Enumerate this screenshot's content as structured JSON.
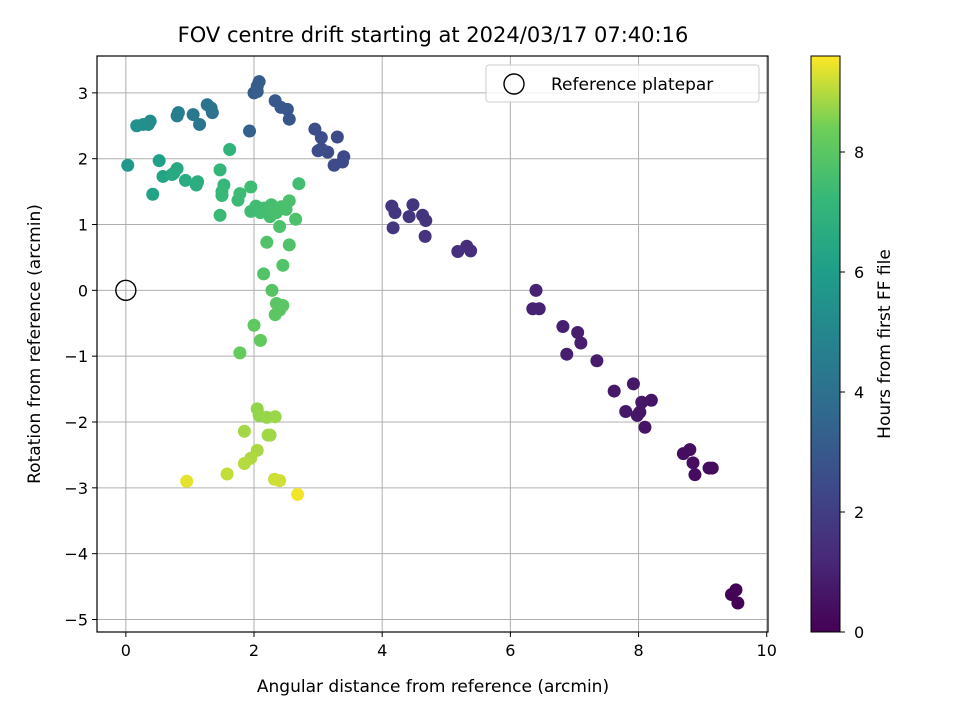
{
  "chart_data": {
    "type": "scatter",
    "title": "FOV centre drift starting at 2024/03/17 07:40:16",
    "xlabel": "Angular distance from reference (arcmin)",
    "ylabel": "Rotation from reference (arcmin)",
    "xlim": [
      -0.45,
      10.02
    ],
    "ylim": [
      -5.19,
      3.56
    ],
    "xticks": [
      0,
      2,
      4,
      6,
      8,
      10
    ],
    "yticks": [
      -5,
      -4,
      -3,
      -2,
      -1,
      0,
      1,
      2,
      3
    ],
    "grid": true,
    "legend": {
      "placement": "top-right",
      "label": "Reference platepar"
    },
    "reference_point": {
      "x": 0,
      "y": 0
    },
    "colorbar": {
      "label": "Hours from first FF file",
      "colormap": "viridis",
      "range": [
        0,
        9.6
      ],
      "ticks": [
        0,
        2,
        4,
        6,
        8
      ]
    },
    "points": [
      {
        "x": 9.52,
        "y": -4.55,
        "h": 0.05
      },
      {
        "x": 9.55,
        "y": -4.75,
        "h": 0.05
      },
      {
        "x": 9.45,
        "y": -4.62,
        "h": 0.08
      },
      {
        "x": 9.1,
        "y": -2.7,
        "h": 0.3
      },
      {
        "x": 9.15,
        "y": -2.7,
        "h": 0.3
      },
      {
        "x": 8.88,
        "y": -2.8,
        "h": 0.32
      },
      {
        "x": 8.85,
        "y": -2.62,
        "h": 0.35
      },
      {
        "x": 8.7,
        "y": -2.48,
        "h": 0.38
      },
      {
        "x": 8.8,
        "y": -2.42,
        "h": 0.4
      },
      {
        "x": 8.1,
        "y": -2.08,
        "h": 0.6
      },
      {
        "x": 8.2,
        "y": -1.67,
        "h": 0.62
      },
      {
        "x": 8.05,
        "y": -1.7,
        "h": 0.64
      },
      {
        "x": 8.02,
        "y": -1.85,
        "h": 0.66
      },
      {
        "x": 7.98,
        "y": -1.9,
        "h": 0.68
      },
      {
        "x": 7.8,
        "y": -1.84,
        "h": 0.7
      },
      {
        "x": 7.92,
        "y": -1.42,
        "h": 0.72
      },
      {
        "x": 7.62,
        "y": -1.53,
        "h": 0.74
      },
      {
        "x": 7.35,
        "y": -1.07,
        "h": 0.82
      },
      {
        "x": 7.1,
        "y": -0.8,
        "h": 0.86
      },
      {
        "x": 7.05,
        "y": -0.64,
        "h": 0.88
      },
      {
        "x": 6.88,
        "y": -0.97,
        "h": 0.9
      },
      {
        "x": 6.82,
        "y": -0.55,
        "h": 0.92
      },
      {
        "x": 6.45,
        "y": -0.28,
        "h": 1.0
      },
      {
        "x": 6.35,
        "y": -0.28,
        "h": 1.02
      },
      {
        "x": 6.4,
        "y": 0.0,
        "h": 1.05
      },
      {
        "x": 5.38,
        "y": 0.6,
        "h": 1.4
      },
      {
        "x": 5.32,
        "y": 0.67,
        "h": 1.42
      },
      {
        "x": 5.18,
        "y": 0.59,
        "h": 1.45
      },
      {
        "x": 4.67,
        "y": 0.82,
        "h": 1.6
      },
      {
        "x": 4.68,
        "y": 1.06,
        "h": 1.62
      },
      {
        "x": 4.63,
        "y": 1.14,
        "h": 1.64
      },
      {
        "x": 4.48,
        "y": 1.3,
        "h": 1.66
      },
      {
        "x": 4.42,
        "y": 1.12,
        "h": 1.68
      },
      {
        "x": 4.2,
        "y": 1.18,
        "h": 1.7
      },
      {
        "x": 4.15,
        "y": 1.28,
        "h": 1.72
      },
      {
        "x": 4.17,
        "y": 0.95,
        "h": 1.74
      },
      {
        "x": 3.4,
        "y": 2.03,
        "h": 2.4
      },
      {
        "x": 3.38,
        "y": 1.95,
        "h": 2.42
      },
      {
        "x": 3.25,
        "y": 1.9,
        "h": 2.44
      },
      {
        "x": 3.3,
        "y": 2.33,
        "h": 2.46
      },
      {
        "x": 3.15,
        "y": 2.1,
        "h": 2.5
      },
      {
        "x": 3.05,
        "y": 2.15,
        "h": 2.52
      },
      {
        "x": 3.0,
        "y": 2.12,
        "h": 2.54
      },
      {
        "x": 3.05,
        "y": 2.32,
        "h": 2.56
      },
      {
        "x": 2.95,
        "y": 2.45,
        "h": 2.6
      },
      {
        "x": 2.55,
        "y": 2.6,
        "h": 2.9
      },
      {
        "x": 2.52,
        "y": 2.75,
        "h": 2.92
      },
      {
        "x": 2.42,
        "y": 2.78,
        "h": 2.94
      },
      {
        "x": 2.33,
        "y": 2.88,
        "h": 2.96
      },
      {
        "x": 2.08,
        "y": 3.17,
        "h": 3.1
      },
      {
        "x": 2.05,
        "y": 3.1,
        "h": 3.12
      },
      {
        "x": 2.0,
        "y": 3.0,
        "h": 3.14
      },
      {
        "x": 2.05,
        "y": 3.02,
        "h": 3.16
      },
      {
        "x": 1.93,
        "y": 2.42,
        "h": 3.3
      },
      {
        "x": 1.33,
        "y": 2.77,
        "h": 4.0
      },
      {
        "x": 1.35,
        "y": 2.7,
        "h": 4.05
      },
      {
        "x": 1.27,
        "y": 2.82,
        "h": 4.1
      },
      {
        "x": 1.15,
        "y": 2.52,
        "h": 4.2
      },
      {
        "x": 1.05,
        "y": 2.67,
        "h": 4.3
      },
      {
        "x": 0.8,
        "y": 2.65,
        "h": 4.6
      },
      {
        "x": 0.82,
        "y": 2.7,
        "h": 4.65
      },
      {
        "x": 0.38,
        "y": 2.57,
        "h": 5.2
      },
      {
        "x": 0.35,
        "y": 2.52,
        "h": 5.25
      },
      {
        "x": 0.27,
        "y": 2.52,
        "h": 5.3
      },
      {
        "x": 0.17,
        "y": 2.5,
        "h": 5.4
      },
      {
        "x": 0.03,
        "y": 1.9,
        "h": 5.8
      },
      {
        "x": 0.52,
        "y": 1.97,
        "h": 6.0
      },
      {
        "x": 0.42,
        "y": 1.46,
        "h": 6.2
      },
      {
        "x": 0.58,
        "y": 1.73,
        "h": 6.3
      },
      {
        "x": 0.75,
        "y": 1.78,
        "h": 6.4
      },
      {
        "x": 0.8,
        "y": 1.85,
        "h": 6.5
      },
      {
        "x": 0.72,
        "y": 1.76,
        "h": 6.55
      },
      {
        "x": 0.93,
        "y": 1.67,
        "h": 6.6
      },
      {
        "x": 1.1,
        "y": 1.6,
        "h": 6.7
      },
      {
        "x": 1.12,
        "y": 1.65,
        "h": 6.72
      },
      {
        "x": 1.62,
        "y": 2.14,
        "h": 7.0
      },
      {
        "x": 1.47,
        "y": 1.83,
        "h": 7.1
      },
      {
        "x": 1.53,
        "y": 1.6,
        "h": 7.2
      },
      {
        "x": 1.5,
        "y": 1.5,
        "h": 7.22
      },
      {
        "x": 1.5,
        "y": 1.44,
        "h": 7.25
      },
      {
        "x": 1.47,
        "y": 1.14,
        "h": 7.3
      },
      {
        "x": 1.75,
        "y": 1.37,
        "h": 7.35
      },
      {
        "x": 1.78,
        "y": 1.47,
        "h": 7.38
      },
      {
        "x": 1.95,
        "y": 1.57,
        "h": 7.4
      },
      {
        "x": 1.95,
        "y": 1.2,
        "h": 7.42
      },
      {
        "x": 2.03,
        "y": 1.28,
        "h": 7.45
      },
      {
        "x": 2.1,
        "y": 1.18,
        "h": 7.47
      },
      {
        "x": 2.15,
        "y": 1.25,
        "h": 7.5
      },
      {
        "x": 2.2,
        "y": 1.22,
        "h": 7.52
      },
      {
        "x": 2.25,
        "y": 1.12,
        "h": 7.55
      },
      {
        "x": 2.27,
        "y": 1.3,
        "h": 7.57
      },
      {
        "x": 2.3,
        "y": 1.2,
        "h": 7.6
      },
      {
        "x": 2.35,
        "y": 1.18,
        "h": 7.62
      },
      {
        "x": 2.43,
        "y": 1.27,
        "h": 7.64
      },
      {
        "x": 2.5,
        "y": 1.23,
        "h": 7.66
      },
      {
        "x": 2.55,
        "y": 1.36,
        "h": 7.68
      },
      {
        "x": 2.4,
        "y": 0.97,
        "h": 7.7
      },
      {
        "x": 2.65,
        "y": 1.08,
        "h": 7.72
      },
      {
        "x": 2.7,
        "y": 1.62,
        "h": 7.5
      },
      {
        "x": 2.2,
        "y": 0.73,
        "h": 7.75
      },
      {
        "x": 2.55,
        "y": 0.69,
        "h": 7.78
      },
      {
        "x": 2.45,
        "y": 0.38,
        "h": 7.8
      },
      {
        "x": 2.15,
        "y": 0.25,
        "h": 7.85
      },
      {
        "x": 2.28,
        "y": 0.0,
        "h": 7.9
      },
      {
        "x": 2.35,
        "y": -0.2,
        "h": 7.95
      },
      {
        "x": 2.45,
        "y": -0.23,
        "h": 7.97
      },
      {
        "x": 2.4,
        "y": -0.3,
        "h": 8.0
      },
      {
        "x": 2.33,
        "y": -0.37,
        "h": 8.02
      },
      {
        "x": 2.0,
        "y": -0.53,
        "h": 8.1
      },
      {
        "x": 2.1,
        "y": -0.76,
        "h": 8.15
      },
      {
        "x": 1.78,
        "y": -0.95,
        "h": 8.2
      },
      {
        "x": 2.05,
        "y": -1.8,
        "h": 8.7
      },
      {
        "x": 2.08,
        "y": -1.9,
        "h": 8.72
      },
      {
        "x": 2.2,
        "y": -1.93,
        "h": 8.74
      },
      {
        "x": 2.33,
        "y": -1.92,
        "h": 8.76
      },
      {
        "x": 2.25,
        "y": -2.2,
        "h": 8.8
      },
      {
        "x": 2.22,
        "y": -2.2,
        "h": 8.82
      },
      {
        "x": 1.85,
        "y": -2.14,
        "h": 8.85
      },
      {
        "x": 2.05,
        "y": -2.43,
        "h": 8.9
      },
      {
        "x": 1.95,
        "y": -2.55,
        "h": 8.95
      },
      {
        "x": 1.85,
        "y": -2.63,
        "h": 9.0
      },
      {
        "x": 1.58,
        "y": -2.79,
        "h": 9.1
      },
      {
        "x": 2.32,
        "y": -2.87,
        "h": 9.2
      },
      {
        "x": 2.4,
        "y": -2.89,
        "h": 9.22
      },
      {
        "x": 0.95,
        "y": -2.9,
        "h": 9.4
      },
      {
        "x": 2.68,
        "y": -3.1,
        "h": 9.5
      }
    ]
  }
}
